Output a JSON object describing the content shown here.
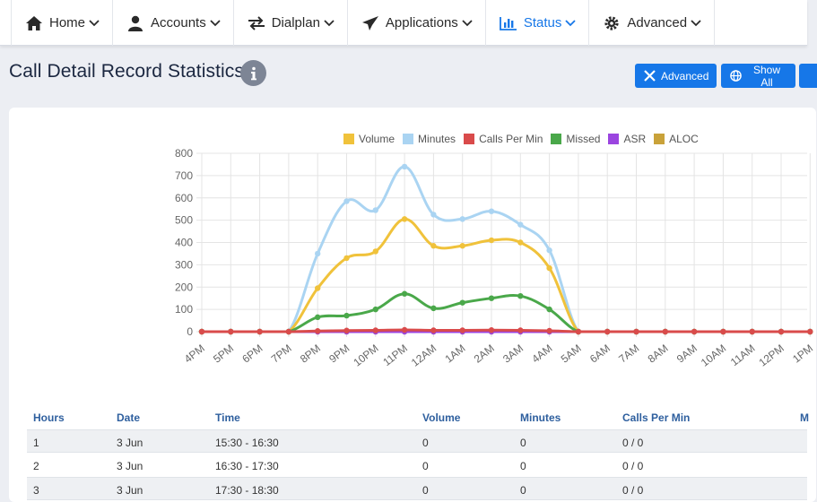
{
  "nav": {
    "items": [
      {
        "label": "Home",
        "icon": "home-icon"
      },
      {
        "label": "Accounts",
        "icon": "user-icon"
      },
      {
        "label": "Dialplan",
        "icon": "arrows-exchange-icon"
      },
      {
        "label": "Applications",
        "icon": "paper-plane-icon"
      },
      {
        "label": "Status",
        "icon": "bar-chart-icon",
        "active": true
      },
      {
        "label": "Advanced",
        "icon": "gear-icon"
      }
    ],
    "active_color": "#1677e8"
  },
  "page": {
    "title": "Call Detail Record Statistics"
  },
  "buttons": {
    "advanced": "Advanced",
    "show_all": "Show All"
  },
  "legend": [
    {
      "label": "Volume",
      "color": "#f0c23b"
    },
    {
      "label": "Minutes",
      "color": "#aad4f2"
    },
    {
      "label": "Calls Per Min",
      "color": "#d94b4b"
    },
    {
      "label": "Missed",
      "color": "#4aa84a"
    },
    {
      "label": "ASR",
      "color": "#9b45e0"
    },
    {
      "label": "ALOC",
      "color": "#c9a23a"
    }
  ],
  "chart_data": {
    "type": "line",
    "categories": [
      "4PM",
      "5PM",
      "6PM",
      "7PM",
      "8PM",
      "9PM",
      "10PM",
      "11PM",
      "12AM",
      "1AM",
      "2AM",
      "3AM",
      "4AM",
      "5AM",
      "6AM",
      "7AM",
      "8AM",
      "9AM",
      "10AM",
      "11AM",
      "12PM",
      "1PM"
    ],
    "ylim": [
      0,
      800
    ],
    "yticks": [
      0,
      100,
      200,
      300,
      400,
      500,
      600,
      700,
      800
    ],
    "grid": true,
    "legend_position": "top",
    "series": [
      {
        "name": "Volume",
        "color": "#f0c23b",
        "values": [
          0,
          0,
          0,
          0,
          195,
          330,
          360,
          505,
          385,
          385,
          410,
          400,
          285,
          0,
          0,
          0,
          0,
          0,
          0,
          0,
          0,
          0
        ]
      },
      {
        "name": "Minutes",
        "color": "#aad4f2",
        "values": [
          0,
          0,
          0,
          0,
          350,
          585,
          545,
          740,
          525,
          505,
          540,
          480,
          365,
          0,
          0,
          0,
          0,
          0,
          0,
          0,
          0,
          0
        ]
      },
      {
        "name": "Calls Per Min",
        "color": "#d94b4b",
        "values": [
          0,
          0,
          0,
          0,
          3,
          5,
          6,
          8,
          6,
          6,
          7,
          6,
          4,
          0,
          0,
          0,
          0,
          0,
          0,
          0,
          0,
          0
        ]
      },
      {
        "name": "Missed",
        "color": "#4aa84a",
        "values": [
          0,
          0,
          0,
          0,
          65,
          72,
          100,
          170,
          105,
          130,
          150,
          160,
          100,
          0,
          0,
          0,
          0,
          0,
          0,
          0,
          0,
          0
        ]
      },
      {
        "name": "ASR",
        "color": "#9b45e0",
        "values": [
          0,
          0,
          0,
          0,
          0,
          0,
          0,
          0,
          0,
          0,
          0,
          0,
          0,
          0,
          0,
          0,
          0,
          0,
          0,
          0,
          0,
          0
        ]
      },
      {
        "name": "ALOC",
        "color": "#c9a23a",
        "values": [
          0,
          0,
          0,
          0,
          0,
          0,
          0,
          0,
          0,
          0,
          0,
          0,
          0,
          0,
          0,
          0,
          0,
          0,
          0,
          0,
          0,
          0
        ]
      }
    ]
  },
  "table": {
    "headers": [
      "Hours",
      "Date",
      "Time",
      "Volume",
      "Minutes",
      "Calls Per Min",
      "M"
    ],
    "rows": [
      [
        "1",
        "3 Jun",
        "15:30 - 16:30",
        "0",
        "0",
        "0 / 0"
      ],
      [
        "2",
        "3 Jun",
        "16:30 - 17:30",
        "0",
        "0",
        "0 / 0"
      ],
      [
        "3",
        "3 Jun",
        "17:30 - 18:30",
        "0",
        "0",
        "0 / 0"
      ]
    ]
  }
}
